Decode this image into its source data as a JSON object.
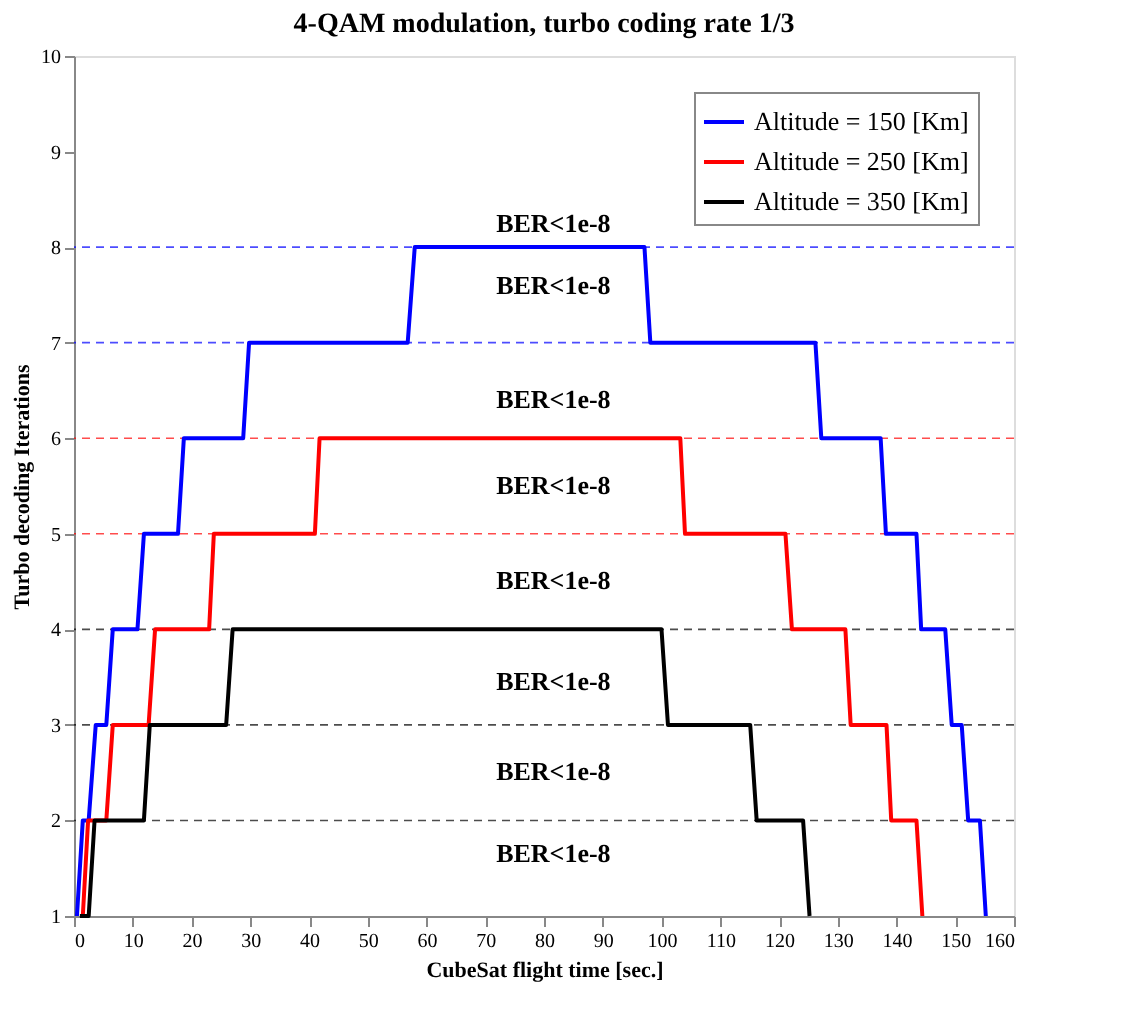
{
  "chart_data": {
    "type": "line",
    "title": "4-QAM modulation, turbo coding rate 1/3",
    "xlabel": "CubeSat flight time [sec.]",
    "ylabel": "Turbo decoding Iterations",
    "xlim": [
      0,
      160
    ],
    "xticks": [
      0,
      10,
      20,
      30,
      40,
      50,
      60,
      70,
      80,
      90,
      100,
      110,
      120,
      130,
      140,
      150,
      160
    ],
    "ylim": [
      1,
      10
    ],
    "yticks": [
      1,
      2,
      3,
      4,
      5,
      6,
      7,
      8,
      9,
      10
    ],
    "legend": "top right",
    "line_style": "solid",
    "marker": "none",
    "series": [
      {
        "name": "Altitude = 150 [Km]",
        "color": "#0000ff",
        "x": [
          0.5,
          1.5,
          2.5,
          3.7,
          5.5,
          6.6,
          10.8,
          11.9,
          17.7,
          18.7,
          28.8,
          29.8,
          56.8,
          58,
          97.1,
          98.1,
          126.2,
          127.2,
          137.3,
          138.2,
          143.4,
          144.2,
          148.3,
          149.4,
          151.1,
          152.2,
          154.2,
          155.2
        ],
        "values": [
          1,
          2,
          2,
          3,
          3,
          4,
          4,
          5,
          5,
          6,
          6,
          7,
          7,
          8,
          8,
          7,
          7,
          6,
          6,
          5,
          5,
          4,
          4,
          3,
          3,
          2,
          2,
          1
        ]
      },
      {
        "name": "Altitude = 250 [Km]",
        "color": "#ff0000",
        "x": [
          1.5,
          2.4,
          5.5,
          6.6,
          12.7,
          13.8,
          23,
          23.8,
          41,
          41.8,
          103.2,
          104,
          121.1,
          122.2,
          131.3,
          132.2,
          138.3,
          139.1,
          143.4,
          144.4
        ],
        "values": [
          1,
          2,
          2,
          3,
          3,
          4,
          4,
          5,
          5,
          6,
          6,
          5,
          5,
          4,
          4,
          3,
          3,
          2,
          2,
          1
        ]
      },
      {
        "name": "Altitude = 350 [Km]",
        "color": "#000000",
        "x": [
          1,
          2.5,
          3.5,
          11.9,
          12.9,
          25.9,
          27,
          100,
          101.1,
          115.1,
          116.2,
          124.1,
          125.2
        ],
        "values": [
          1,
          1,
          2,
          2,
          3,
          3,
          4,
          4,
          3,
          3,
          2,
          2,
          1
        ]
      }
    ],
    "ref_lines": [
      {
        "axis": "y",
        "value": 8,
        "color": "#0000ff",
        "line_style": "dashed"
      },
      {
        "axis": "y",
        "value": 7,
        "color": "#0000ff",
        "line_style": "dashed"
      },
      {
        "axis": "y",
        "value": 6,
        "color": "#ff0000",
        "line_style": "dashed"
      },
      {
        "axis": "y",
        "value": 5,
        "color": "#ff0000",
        "line_style": "dashed"
      },
      {
        "axis": "y",
        "value": 4,
        "color": "#000000",
        "line_style": "dashed"
      },
      {
        "axis": "y",
        "value": 3,
        "color": "#000000",
        "line_style": "dashed"
      },
      {
        "axis": "y",
        "value": 2,
        "color": "#000000",
        "line_style": "dashed"
      }
    ],
    "annotations": [
      "BER<1e-8",
      "BER<1e-8",
      "BER<1e-8",
      "BER<1e-8",
      "BER<1e-8",
      "BER<1e-8",
      "BER<1e-8",
      "BER<1e-8"
    ]
  }
}
